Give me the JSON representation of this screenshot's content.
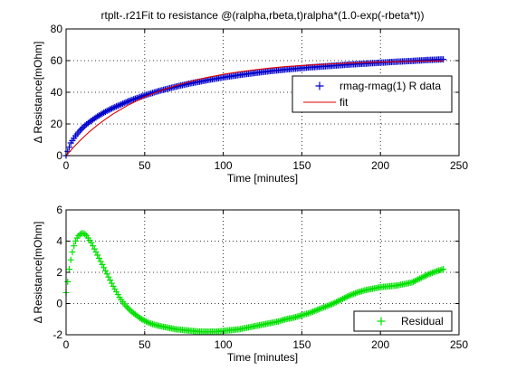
{
  "colors": {
    "figure_background": "#ffffff",
    "axes_background": "#ffffff",
    "axis": "#000000",
    "grid": "#000000",
    "data_marker": "#0000cc",
    "fit_line": "#dd0000",
    "residual_marker": "#00e000"
  },
  "chart_data": [
    {
      "type": "scatter",
      "title": "rtplt-.r21Fit to resistance @(ralpha,rbeta,t)ralpha*(1.0-exp(-rbeta*t))",
      "xlabel": "Time [minutes]",
      "ylabel": "Δ Resistance[mOhm]",
      "xlim": [
        0,
        250
      ],
      "ylim": [
        0,
        80
      ],
      "xticks": [
        0,
        50,
        100,
        150,
        200,
        250
      ],
      "xtick_labels": [
        "0",
        "50",
        "100",
        "150",
        "200",
        "250"
      ],
      "yticks": [
        0,
        20,
        40,
        60,
        80
      ],
      "ytick_labels": [
        "0",
        "20",
        "40",
        "60",
        "80"
      ],
      "grid": true,
      "legend_position": "right, below top",
      "series": [
        {
          "name": "rmag-rmag(1) R data",
          "kind": "markers",
          "marker": "+",
          "color": "#0000cc",
          "x": [
            0,
            3,
            6,
            9,
            12,
            15,
            20,
            25,
            30,
            40,
            50,
            60,
            70,
            80,
            90,
            100,
            110,
            120,
            130,
            140,
            150,
            160,
            170,
            180,
            190,
            200,
            210,
            220,
            230,
            240
          ],
          "y": [
            0,
            8,
            12.5,
            16,
            19,
            21.3,
            24.8,
            27.7,
            30.2,
            34.5,
            38.1,
            41.1,
            43.6,
            45.8,
            47.7,
            49.4,
            50.9,
            52.2,
            53.4,
            54.4,
            55.3,
            56.1,
            56.8,
            57.5,
            58.1,
            58.7,
            59.3,
            59.8,
            60.4,
            60.8
          ]
        },
        {
          "name": "fit",
          "kind": "line",
          "color": "#dd0000",
          "x": [
            0,
            5,
            10,
            15,
            20,
            25,
            30,
            40,
            50,
            60,
            70,
            80,
            90,
            100,
            110,
            120,
            130,
            140,
            150,
            160,
            170,
            180,
            190,
            200,
            210,
            220,
            230,
            240
          ],
          "y": [
            0,
            5.6,
            10.6,
            15.2,
            19.3,
            23,
            26.4,
            32.2,
            37,
            41,
            44.3,
            47.1,
            49.4,
            51.3,
            52.9,
            54.2,
            55.3,
            56.2,
            56.9,
            57.5,
            58,
            58.4,
            58.8,
            59.1,
            59.3,
            59.5,
            59.7,
            59.8
          ]
        }
      ]
    },
    {
      "type": "scatter",
      "title": "",
      "xlabel": "Time [minutes]",
      "ylabel": "Δ Resistance[mOhm]",
      "xlim": [
        0,
        250
      ],
      "ylim": [
        -2,
        6
      ],
      "xticks": [
        0,
        50,
        100,
        150,
        200,
        250
      ],
      "xtick_labels": [
        "0",
        "50",
        "100",
        "150",
        "200",
        "250"
      ],
      "yticks": [
        -2,
        0,
        2,
        4,
        6
      ],
      "ytick_labels": [
        "-2",
        "0",
        "2",
        "4",
        "6"
      ],
      "grid": true,
      "legend_position": "bottom-right",
      "series": [
        {
          "name": "Residual",
          "kind": "markers",
          "marker": "+",
          "color": "#00e000",
          "x": [
            0,
            1,
            2,
            3,
            4,
            5,
            6,
            7,
            8,
            9,
            10,
            11,
            12,
            13,
            14,
            15,
            16,
            17,
            18,
            19,
            20,
            22,
            24,
            26,
            28,
            30,
            32,
            34,
            36,
            38,
            40,
            42,
            44,
            46,
            48,
            50,
            53,
            56,
            60,
            65,
            70,
            75,
            80,
            85,
            90,
            95,
            100,
            105,
            110,
            115,
            120,
            125,
            130,
            135,
            140,
            145,
            150,
            155,
            160,
            165,
            170,
            175,
            180,
            185,
            190,
            195,
            200,
            205,
            210,
            215,
            220,
            225,
            230,
            235,
            240
          ],
          "y": [
            0.7,
            1.4,
            2.2,
            2.8,
            3.3,
            3.7,
            4,
            4.2,
            4.35,
            4.45,
            4.5,
            4.5,
            4.45,
            4.35,
            4.2,
            4.05,
            3.9,
            3.7,
            3.5,
            3.3,
            3.1,
            2.7,
            2.3,
            1.9,
            1.5,
            1.1,
            0.75,
            0.4,
            0.1,
            -0.15,
            -0.35,
            -0.55,
            -0.7,
            -0.85,
            -1,
            -1.1,
            -1.25,
            -1.35,
            -1.45,
            -1.55,
            -1.65,
            -1.7,
            -1.75,
            -1.8,
            -1.8,
            -1.8,
            -1.75,
            -1.7,
            -1.65,
            -1.55,
            -1.45,
            -1.35,
            -1.25,
            -1.15,
            -1,
            -0.9,
            -0.75,
            -0.6,
            -0.4,
            -0.2,
            0,
            0.25,
            0.5,
            0.7,
            0.85,
            0.95,
            1.05,
            1.1,
            1.15,
            1.25,
            1.35,
            1.6,
            1.85,
            2.05,
            2.2
          ]
        }
      ]
    }
  ]
}
